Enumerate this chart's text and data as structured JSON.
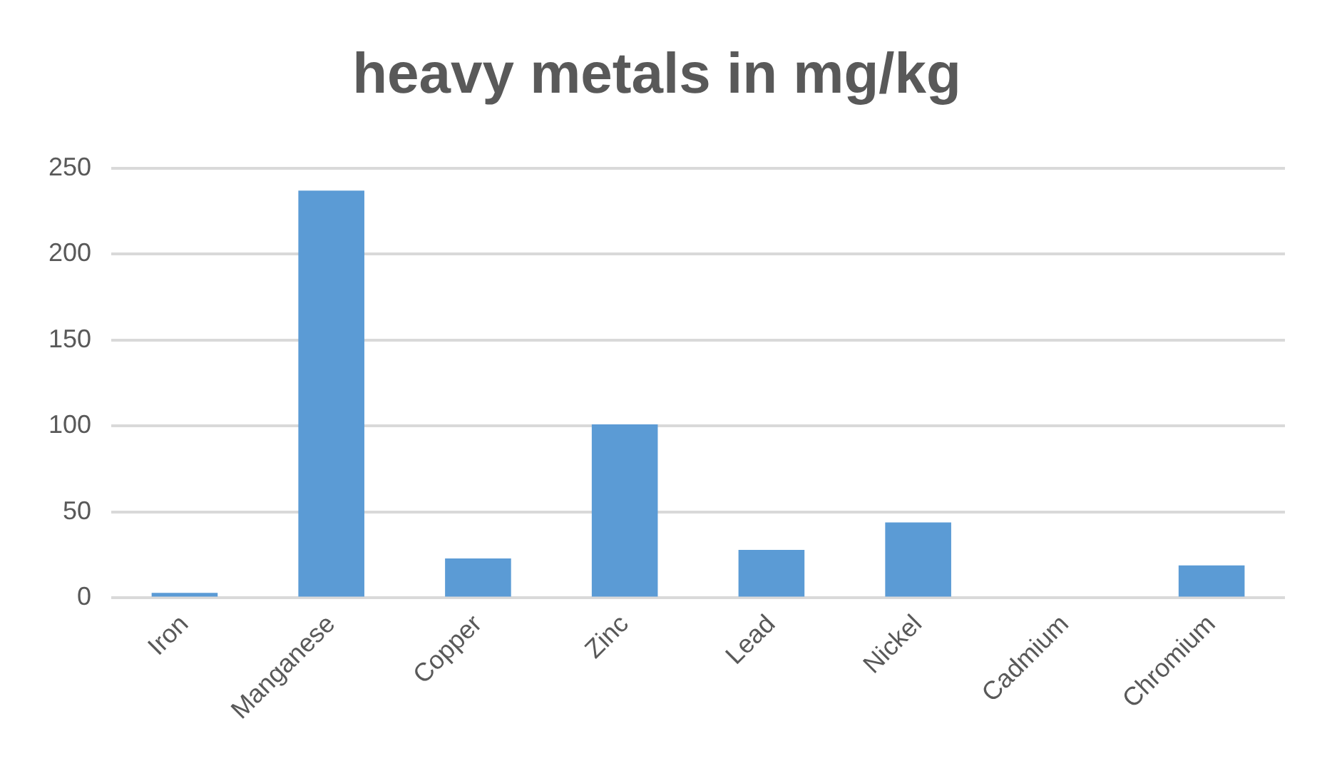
{
  "chart_data": {
    "type": "bar",
    "title": "heavy metals in mg/kg",
    "categories": [
      "Iron",
      "Manganese",
      "Copper",
      "Zinc",
      "Lead",
      "Nickel",
      "Cadmium",
      "Chromium"
    ],
    "values": [
      3,
      237,
      23,
      101,
      28,
      44,
      0,
      19
    ],
    "color": "#5b9bd5",
    "ylim": [
      0,
      250
    ],
    "yticks": [
      0,
      50,
      100,
      150,
      200,
      250
    ],
    "grid": "y",
    "legend": false
  }
}
